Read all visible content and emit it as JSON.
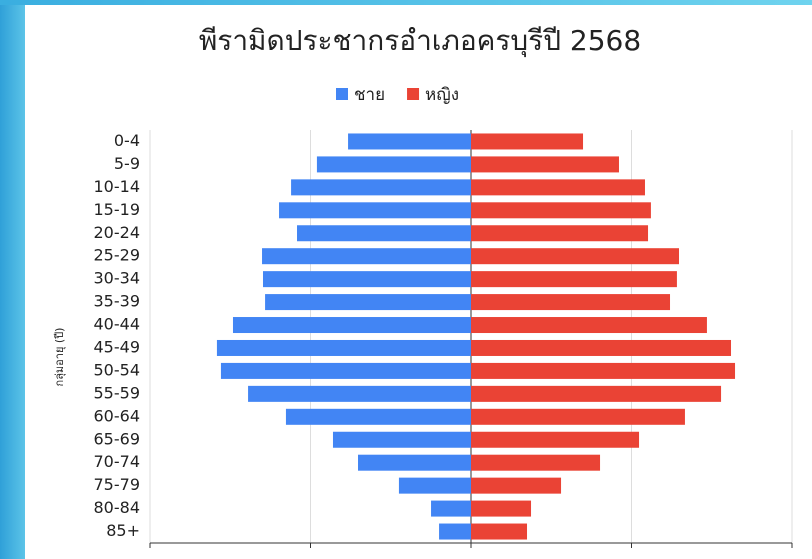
{
  "chart_data": {
    "type": "bar",
    "orientation": "horizontal",
    "stacked": "diverging",
    "title": "พีรามิดประชากรอำเภอครบุรีปี 2568",
    "y_label": "กลุ่มอายุ (ปี)",
    "categories": [
      "0-4",
      "5-9",
      "10-14",
      "15-19",
      "20-24",
      "25-29",
      "30-34",
      "35-39",
      "40-44",
      "45-49",
      "50-54",
      "55-59",
      "60-64",
      "65-69",
      "70-74",
      "75-79",
      "80-84",
      "85+"
    ],
    "series": [
      {
        "name": "ชาย",
        "color": "#4285f4",
        "values": [
          -766,
          -960,
          -1121,
          -1196,
          -1084,
          -1302,
          -1296,
          -1283,
          -1483,
          -1583,
          -1558,
          -1389,
          -1153,
          -860,
          -704,
          -449,
          -249,
          -199
        ]
      },
      {
        "name": "หญิง",
        "color": "#ea4335",
        "values": [
          698,
          922,
          1084,
          1121,
          1103,
          1296,
          1283,
          1240,
          1470,
          1620,
          1645,
          1558,
          1333,
          1047,
          804,
          561,
          374,
          349
        ]
      }
    ],
    "xlim": [
      -2000,
      2000
    ],
    "xticks": [
      -2000,
      -1000,
      0,
      1000,
      2000
    ],
    "grid": true,
    "legend": "top"
  }
}
